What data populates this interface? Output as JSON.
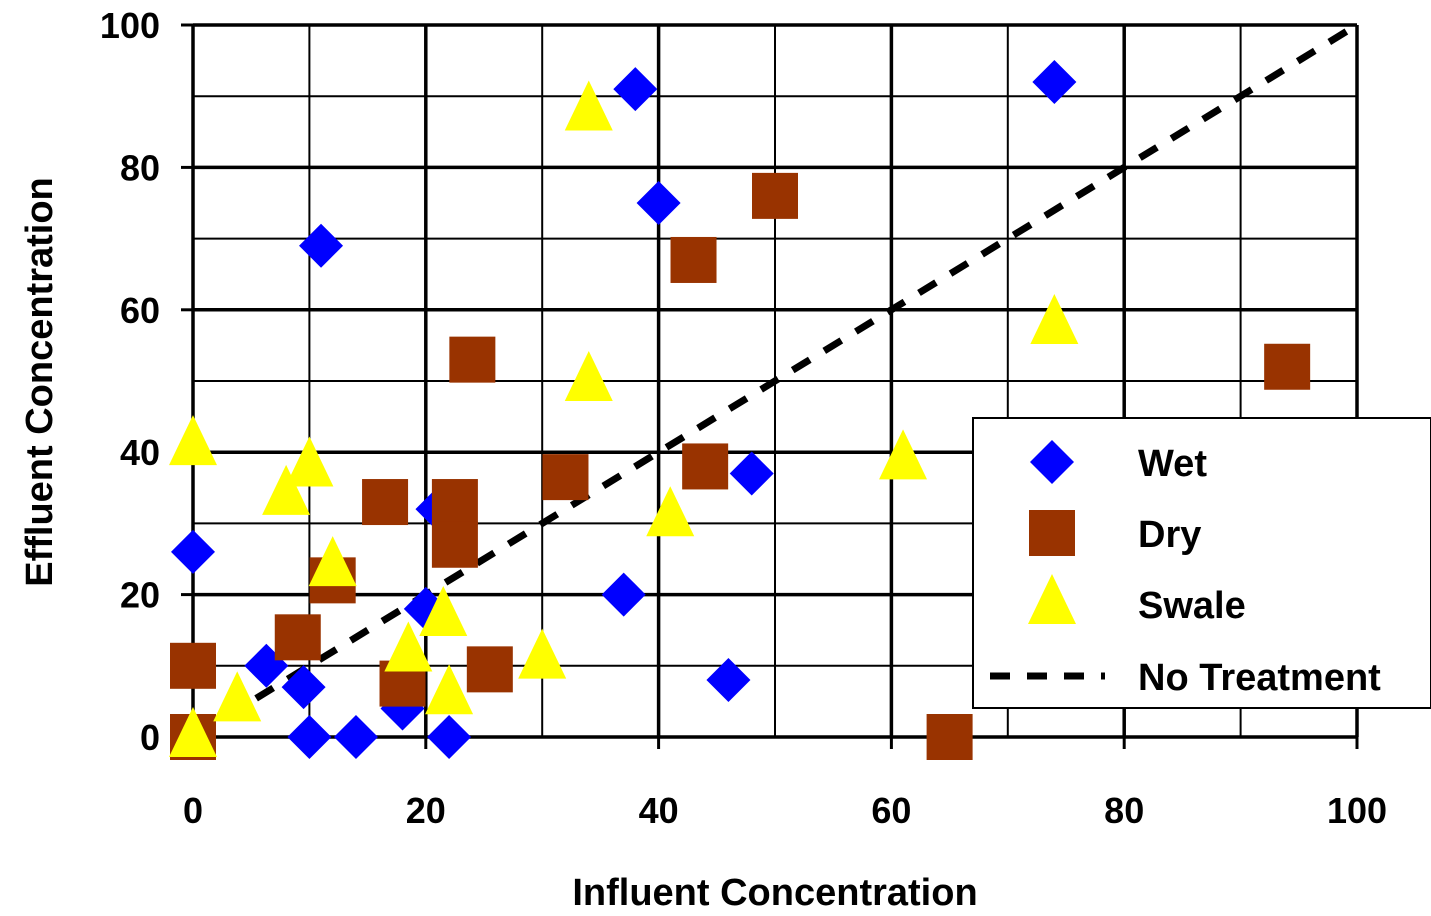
{
  "chart_data": {
    "type": "scatter",
    "xlabel": "Influent Concentration",
    "ylabel": "Effluent Concentration",
    "xlim": [
      0,
      100
    ],
    "ylim": [
      0,
      100
    ],
    "x_ticks": [
      0,
      20,
      40,
      60,
      80,
      100
    ],
    "y_ticks": [
      0,
      20,
      40,
      60,
      80,
      100
    ],
    "grid": true,
    "legend_position": "right",
    "series": [
      {
        "name": "Wet",
        "marker": "diamond",
        "color": "#0000ff",
        "points": [
          [
            0,
            26
          ],
          [
            6.3,
            10
          ],
          [
            9.5,
            7
          ],
          [
            10,
            0
          ],
          [
            11,
            69
          ],
          [
            14,
            0
          ],
          [
            18,
            4
          ],
          [
            20,
            18
          ],
          [
            21,
            32
          ],
          [
            22,
            0
          ],
          [
            37,
            20
          ],
          [
            38,
            91
          ],
          [
            40,
            75
          ],
          [
            46,
            8
          ],
          [
            48,
            37
          ],
          [
            74,
            92
          ]
        ]
      },
      {
        "name": "Dry",
        "marker": "square",
        "color": "#993300",
        "points": [
          [
            0,
            10
          ],
          [
            0,
            0
          ],
          [
            9,
            14
          ],
          [
            12,
            22
          ],
          [
            16.5,
            33
          ],
          [
            18,
            7.5
          ],
          [
            22.5,
            33
          ],
          [
            22.5,
            27
          ],
          [
            24,
            53
          ],
          [
            25.5,
            9.5
          ],
          [
            32,
            36.5
          ],
          [
            43,
            67
          ],
          [
            44,
            38
          ],
          [
            50,
            76
          ],
          [
            65,
            0
          ],
          [
            94,
            52
          ]
        ]
      },
      {
        "name": "Swale",
        "marker": "triangle",
        "color": "#ffff00",
        "points": [
          [
            0,
            41
          ],
          [
            0,
            0
          ],
          [
            3.8,
            5
          ],
          [
            8,
            34
          ],
          [
            10,
            38
          ],
          [
            12,
            24
          ],
          [
            18.5,
            12
          ],
          [
            21.5,
            17
          ],
          [
            22,
            6
          ],
          [
            30,
            11
          ],
          [
            34,
            88
          ],
          [
            34,
            50
          ],
          [
            41,
            31
          ],
          [
            61,
            39
          ],
          [
            74,
            58
          ]
        ]
      },
      {
        "name": "No Treatment",
        "type": "line",
        "style": "dashed",
        "color": "#000000",
        "points": [
          [
            0,
            0
          ],
          [
            100,
            100
          ]
        ]
      }
    ]
  }
}
